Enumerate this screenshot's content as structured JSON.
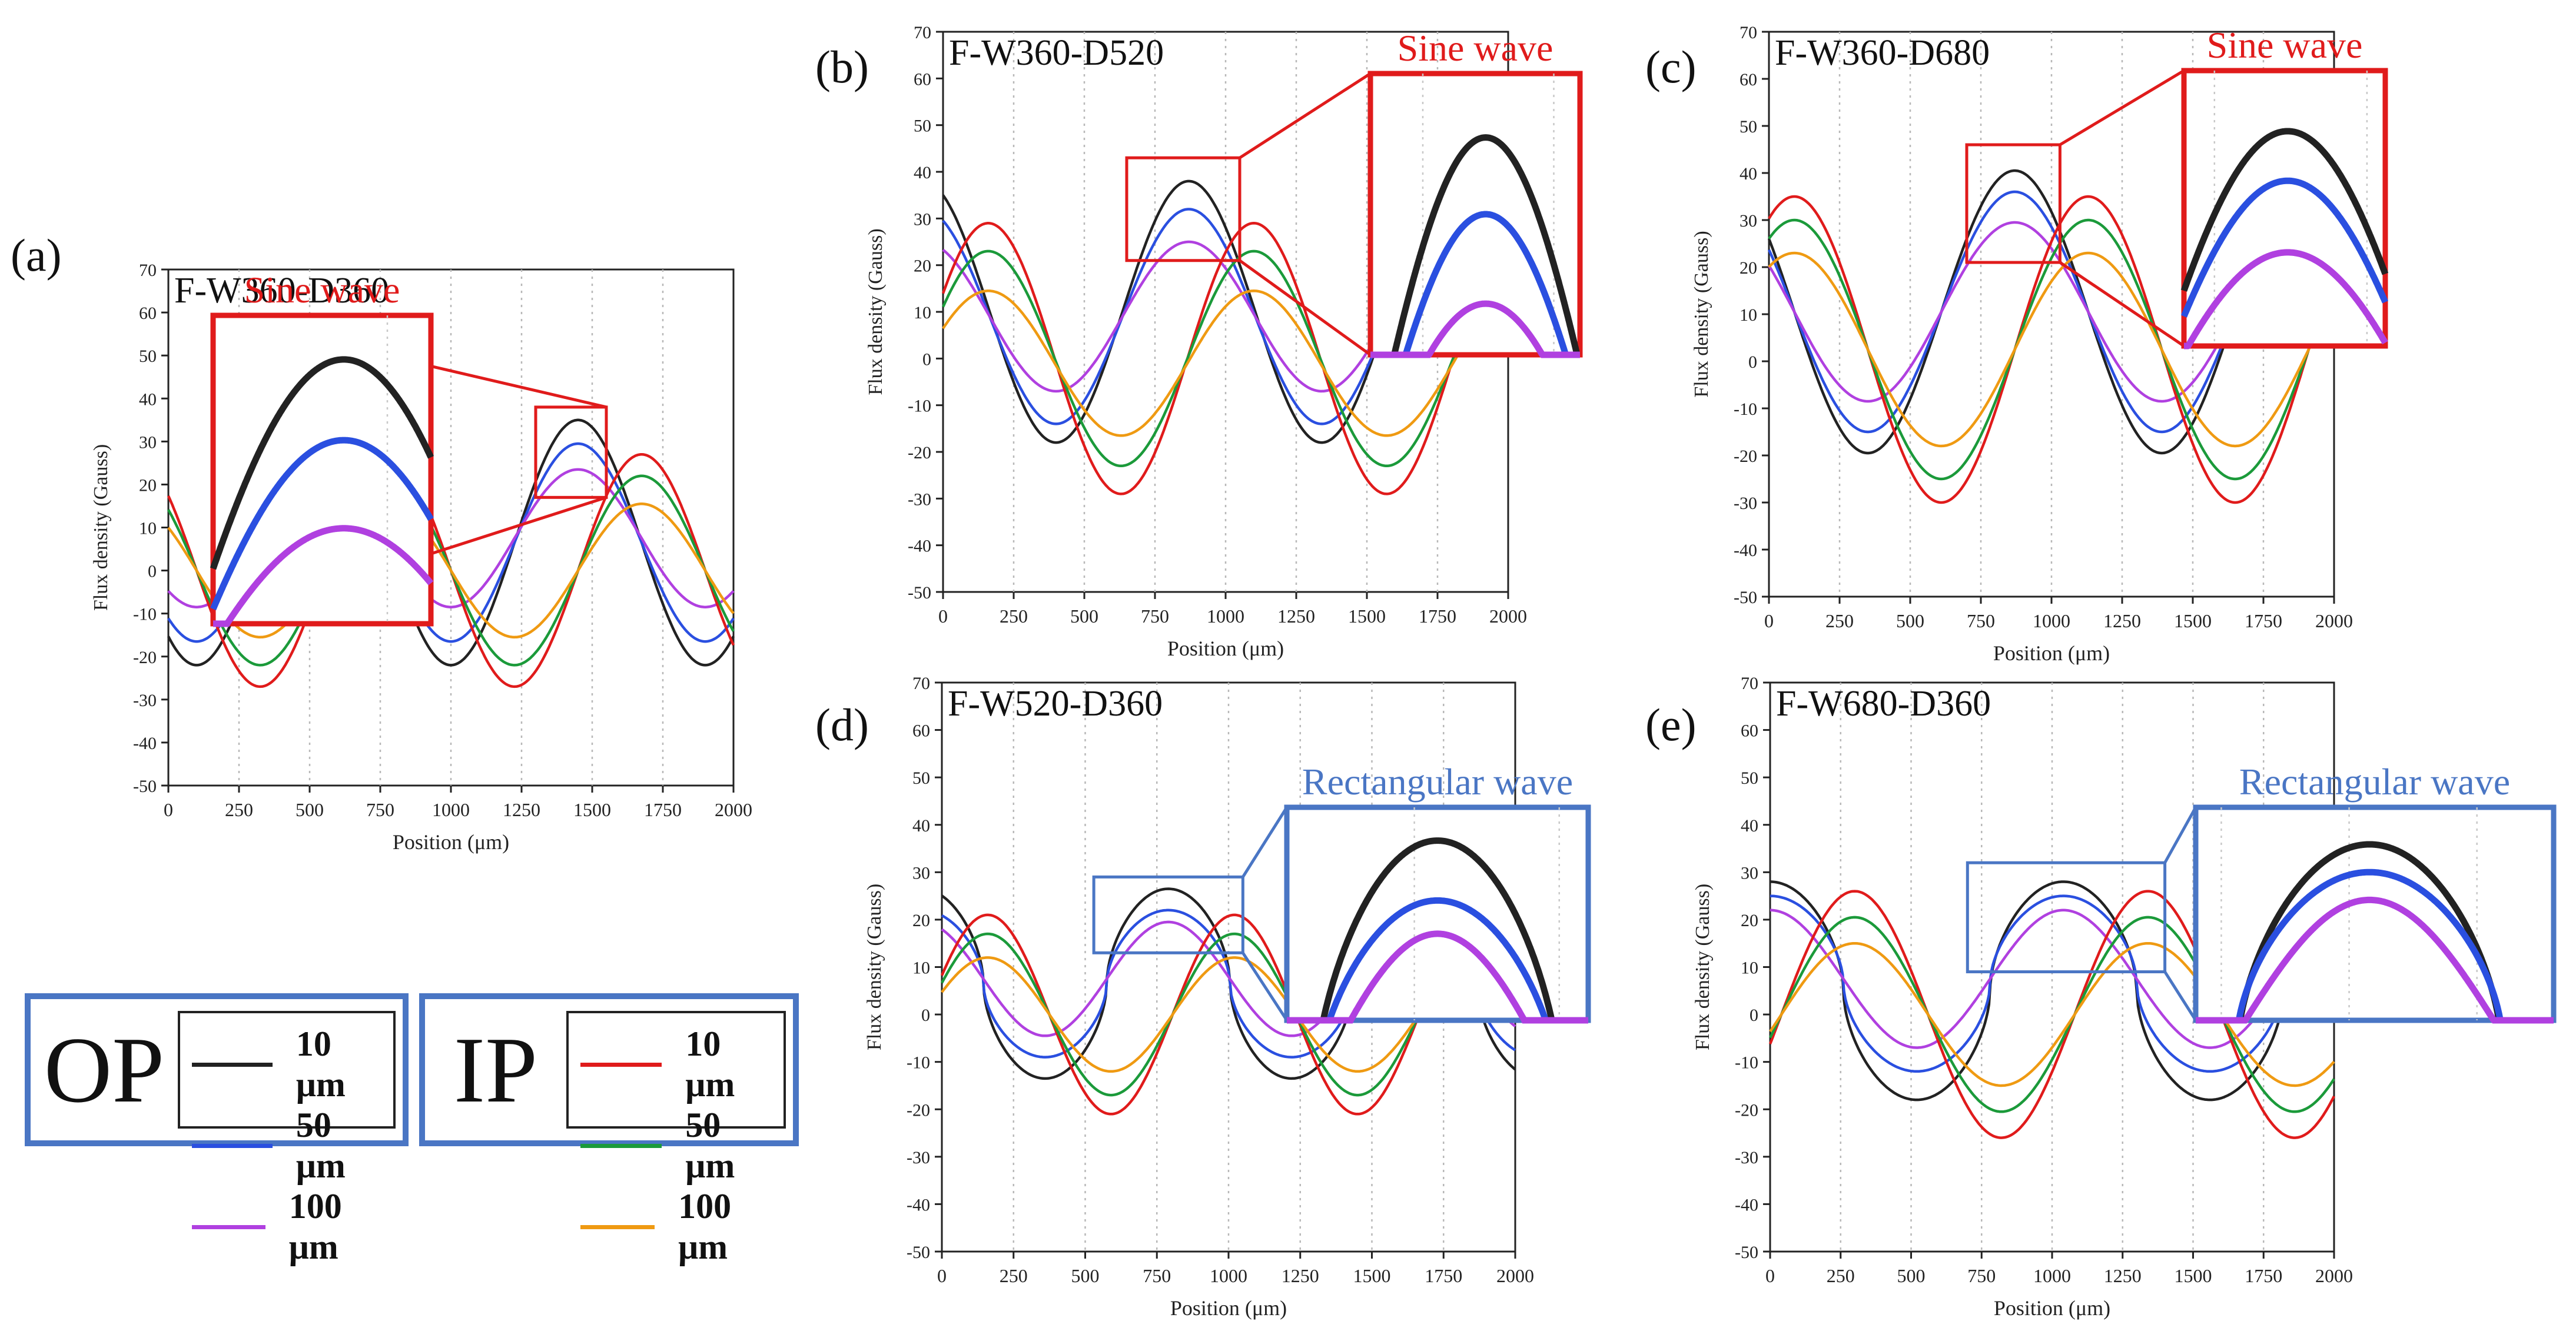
{
  "figure": {
    "x_axis_label": "Position (μm)",
    "y_axis_label": "Flux density (Gauss)",
    "series_colors": {
      "op_10": "#222222",
      "op_50": "#2a4fe0",
      "op_100": "#b040e0",
      "ip_10": "#e01b1b",
      "ip_50": "#1b9a3a",
      "ip_100": "#ef9a12"
    }
  },
  "legend": {
    "op": {
      "tag": "OP",
      "entries": [
        "10 μm",
        "50 μm",
        "100 μm"
      ]
    },
    "ip": {
      "tag": "IP",
      "entries": [
        "10 μm",
        "50 μm",
        "100 μm"
      ]
    }
  },
  "chart_data": [
    {
      "panel": "(a)",
      "type": "line",
      "title": "F-W360-D360",
      "xlabel": "Position (μm)",
      "ylabel": "Flux density (Gauss)",
      "xlim": [
        0,
        2000
      ],
      "ylim": [
        -50,
        70
      ],
      "xticks": [
        0,
        250,
        500,
        750,
        1000,
        1250,
        1500,
        1750,
        2000
      ],
      "yticks": [
        -50,
        -40,
        -30,
        -20,
        -10,
        0,
        10,
        20,
        30,
        40,
        50,
        60,
        70
      ],
      "inset_label": "Sine wave",
      "inset_color": "#e01b1b",
      "inset_range": {
        "x": [
          1300,
          1550
        ],
        "y": [
          17,
          38
        ]
      },
      "series": [
        {
          "name": "OP 10 μm",
          "group": "OP",
          "color": "#222222",
          "waveform": "sine",
          "period_um": 900,
          "peak_um": 550,
          "amplitude": 28.5,
          "offset": 6.5
        },
        {
          "name": "OP 50 μm",
          "group": "OP",
          "color": "#2a4fe0",
          "waveform": "sine",
          "period_um": 900,
          "peak_um": 550,
          "amplitude": 23,
          "offset": 6.5
        },
        {
          "name": "OP 100 μm",
          "group": "OP",
          "color": "#b040e0",
          "waveform": "sine",
          "period_um": 900,
          "peak_um": 550,
          "amplitude": 16,
          "offset": 7.5
        },
        {
          "name": "IP 10 μm",
          "group": "IP",
          "color": "#e01b1b",
          "waveform": "sine",
          "period_um": 900,
          "peak_um": 775,
          "amplitude": 27,
          "offset": 0
        },
        {
          "name": "IP 50 μm",
          "group": "IP",
          "color": "#1b9a3a",
          "waveform": "sine",
          "period_um": 900,
          "peak_um": 775,
          "amplitude": 22,
          "offset": 0
        },
        {
          "name": "IP 100 μm",
          "group": "IP",
          "color": "#ef9a12",
          "waveform": "sine",
          "period_um": 900,
          "peak_um": 775,
          "amplitude": 15.5,
          "offset": 0
        }
      ]
    },
    {
      "panel": "(b)",
      "type": "line",
      "title": "F-W360-D520",
      "xlabel": "Position (μm)",
      "ylabel": "Flux density (Gauss)",
      "xlim": [
        0,
        2000
      ],
      "ylim": [
        -50,
        70
      ],
      "xticks": [
        0,
        250,
        500,
        750,
        1000,
        1250,
        1500,
        1750,
        2000
      ],
      "yticks": [
        -50,
        -40,
        -30,
        -20,
        -10,
        0,
        10,
        20,
        30,
        40,
        50,
        60,
        70
      ],
      "inset_label": "Sine wave",
      "inset_color": "#e01b1b",
      "inset_range": {
        "x": [
          650,
          1050
        ],
        "y": [
          21,
          43
        ]
      },
      "series": [
        {
          "name": "OP 10 μm",
          "group": "OP",
          "color": "#222222",
          "waveform": "sine",
          "period_um": 940,
          "peak_um": 870,
          "amplitude": 28,
          "offset": 10
        },
        {
          "name": "OP 50 μm",
          "group": "OP",
          "color": "#2a4fe0",
          "waveform": "sine",
          "period_um": 940,
          "peak_um": 870,
          "amplitude": 23,
          "offset": 9
        },
        {
          "name": "OP 100 μm",
          "group": "OP",
          "color": "#b040e0",
          "waveform": "sine",
          "period_um": 940,
          "peak_um": 870,
          "amplitude": 16,
          "offset": 9
        },
        {
          "name": "IP 10 μm",
          "group": "IP",
          "color": "#e01b1b",
          "waveform": "sine",
          "period_um": 940,
          "peak_um": 1100,
          "amplitude": 29,
          "offset": 0
        },
        {
          "name": "IP 50 μm",
          "group": "IP",
          "color": "#1b9a3a",
          "waveform": "sine",
          "period_um": 940,
          "peak_um": 1100,
          "amplitude": 23,
          "offset": 0
        },
        {
          "name": "IP 100 μm",
          "group": "IP",
          "color": "#ef9a12",
          "waveform": "sine",
          "period_um": 940,
          "peak_um": 1100,
          "amplitude": 15.5,
          "offset": -1
        }
      ]
    },
    {
      "panel": "(c)",
      "type": "line",
      "title": "F-W360-D680",
      "xlabel": "Position (μm)",
      "ylabel": "Flux density (Gauss)",
      "xlim": [
        0,
        2000
      ],
      "ylim": [
        -50,
        70
      ],
      "xticks": [
        0,
        250,
        500,
        750,
        1000,
        1250,
        1500,
        1750,
        2000
      ],
      "yticks": [
        -50,
        -40,
        -30,
        -20,
        -10,
        0,
        10,
        20,
        30,
        40,
        50,
        60,
        70
      ],
      "inset_label": "Sine wave",
      "inset_color": "#e01b1b",
      "inset_range": {
        "x": [
          700,
          1030
        ],
        "y": [
          21,
          46
        ]
      },
      "series": [
        {
          "name": "OP 10 μm",
          "group": "OP",
          "color": "#222222",
          "waveform": "sine",
          "period_um": 1040,
          "peak_um": 870,
          "amplitude": 30,
          "offset": 10.5
        },
        {
          "name": "OP 50 μm",
          "group": "OP",
          "color": "#2a4fe0",
          "waveform": "sine",
          "period_um": 1040,
          "peak_um": 870,
          "amplitude": 25.5,
          "offset": 10.5
        },
        {
          "name": "OP 100 μm",
          "group": "OP",
          "color": "#b040e0",
          "waveform": "sine",
          "period_um": 1040,
          "peak_um": 870,
          "amplitude": 19,
          "offset": 10.5
        },
        {
          "name": "IP 10 μm",
          "group": "IP",
          "color": "#e01b1b",
          "waveform": "sine",
          "period_um": 1040,
          "peak_um": 1130,
          "amplitude": 32.5,
          "offset": 2.5
        },
        {
          "name": "IP 50 μm",
          "group": "IP",
          "color": "#1b9a3a",
          "waveform": "sine",
          "period_um": 1040,
          "peak_um": 1130,
          "amplitude": 27.5,
          "offset": 2.5
        },
        {
          "name": "IP 100 μm",
          "group": "IP",
          "color": "#ef9a12",
          "waveform": "sine",
          "period_um": 1040,
          "peak_um": 1130,
          "amplitude": 20.5,
          "offset": 2.5
        }
      ]
    },
    {
      "panel": "(d)",
      "type": "line",
      "title": "F-W520-D360",
      "xlabel": "Position (μm)",
      "ylabel": "Flux density (Gauss)",
      "xlim": [
        0,
        2000
      ],
      "ylim": [
        -50,
        70
      ],
      "xticks": [
        0,
        250,
        500,
        750,
        1000,
        1250,
        1500,
        1750,
        2000
      ],
      "yticks": [
        -50,
        -40,
        -30,
        -20,
        -10,
        0,
        10,
        20,
        30,
        40,
        50,
        60,
        70
      ],
      "inset_label": "Rectangular wave",
      "inset_color": "#4a76c4",
      "inset_range": {
        "x": [
          530,
          1050
        ],
        "y": [
          13,
          29
        ]
      },
      "series": [
        {
          "name": "OP 10 μm",
          "group": "OP",
          "color": "#222222",
          "waveform": "rect",
          "period_um": 860,
          "peak_um": 790,
          "amplitude": 20,
          "offset": 6.5
        },
        {
          "name": "OP 50 μm",
          "group": "OP",
          "color": "#2a4fe0",
          "waveform": "rect",
          "period_um": 860,
          "peak_um": 790,
          "amplitude": 15.5,
          "offset": 6.5
        },
        {
          "name": "OP 100 μm",
          "group": "OP",
          "color": "#b040e0",
          "waveform": "sine",
          "period_um": 860,
          "peak_um": 790,
          "amplitude": 12,
          "offset": 7.5
        },
        {
          "name": "IP 10 μm",
          "group": "IP",
          "color": "#e01b1b",
          "waveform": "sine",
          "period_um": 860,
          "peak_um": 1020,
          "amplitude": 21,
          "offset": 0
        },
        {
          "name": "IP 50 μm",
          "group": "IP",
          "color": "#1b9a3a",
          "waveform": "sine",
          "period_um": 860,
          "peak_um": 1020,
          "amplitude": 17,
          "offset": 0
        },
        {
          "name": "IP 100 μm",
          "group": "IP",
          "color": "#ef9a12",
          "waveform": "sine",
          "period_um": 860,
          "peak_um": 1020,
          "amplitude": 12,
          "offset": 0
        }
      ]
    },
    {
      "panel": "(e)",
      "type": "line",
      "title": "F-W680-D360",
      "xlabel": "Position (μm)",
      "ylabel": "Flux density (Gauss)",
      "xlim": [
        0,
        2000
      ],
      "ylim": [
        -50,
        70
      ],
      "xticks": [
        0,
        250,
        500,
        750,
        1000,
        1250,
        1500,
        1750,
        2000
      ],
      "yticks": [
        -50,
        -40,
        -30,
        -20,
        -10,
        0,
        10,
        20,
        30,
        40,
        50,
        60,
        70
      ],
      "inset_label": "Rectangular wave",
      "inset_color": "#4a76c4",
      "inset_range": {
        "x": [
          700,
          1400
        ],
        "y": [
          9,
          32
        ]
      },
      "series": [
        {
          "name": "OP 10 μm",
          "group": "OP",
          "color": "#222222",
          "waveform": "rect",
          "period_um": 1040,
          "peak_um": 1040,
          "amplitude": 23,
          "offset": 5
        },
        {
          "name": "OP 50 μm",
          "group": "OP",
          "color": "#2a4fe0",
          "waveform": "rect",
          "period_um": 1040,
          "peak_um": 1040,
          "amplitude": 18.5,
          "offset": 6.5
        },
        {
          "name": "OP 100 μm",
          "group": "OP",
          "color": "#b040e0",
          "waveform": "sine",
          "period_um": 1040,
          "peak_um": 1040,
          "amplitude": 14.5,
          "offset": 7.5
        },
        {
          "name": "IP 10 μm",
          "group": "IP",
          "color": "#e01b1b",
          "waveform": "sine",
          "period_um": 1040,
          "peak_um": 1340,
          "amplitude": 26,
          "offset": 0
        },
        {
          "name": "IP 50 μm",
          "group": "IP",
          "color": "#1b9a3a",
          "waveform": "sine",
          "period_um": 1040,
          "peak_um": 1340,
          "amplitude": 20.5,
          "offset": 0
        },
        {
          "name": "IP 100 μm",
          "group": "IP",
          "color": "#ef9a12",
          "waveform": "sine",
          "period_um": 1040,
          "peak_um": 1340,
          "amplitude": 15,
          "offset": 0
        }
      ]
    }
  ]
}
